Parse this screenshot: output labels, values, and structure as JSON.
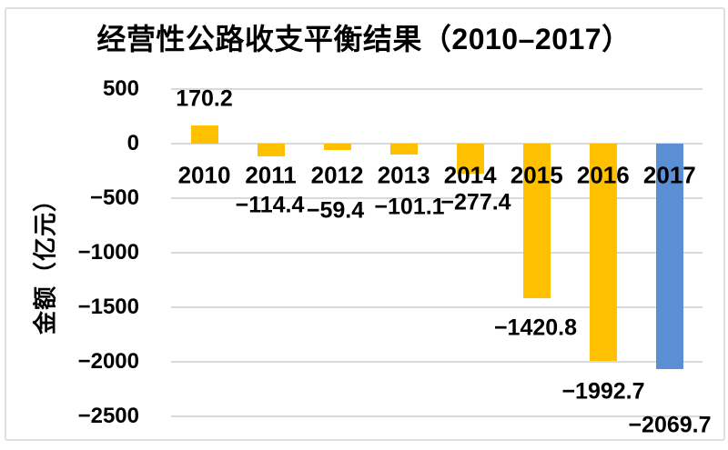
{
  "chart_data": {
    "type": "bar",
    "title": "经营性公路收支平衡结果（2010–2017）",
    "ylabel": "金额（亿元）",
    "xlabel": "",
    "categories": [
      "2010",
      "2011",
      "2012",
      "2013",
      "2014",
      "2015",
      "2016",
      "2017"
    ],
    "values": [
      170.2,
      -114.4,
      -59.4,
      -101.1,
      -277.4,
      -1420.8,
      -1992.7,
      -2069.7
    ],
    "value_labels": [
      "170.2",
      "−114.4",
      "−59.4",
      "−101.1",
      "−277.4",
      "−1420.8",
      "−1992.7",
      "−2069.7"
    ],
    "bar_colors": [
      "#FFC000",
      "#FFC000",
      "#FFC000",
      "#FFC000",
      "#FFC000",
      "#FFC000",
      "#FFC000",
      "#5B8FD3"
    ],
    "ylim": [
      -2500,
      500
    ],
    "y_tick_values": [
      500,
      0,
      -500,
      -1000,
      -1500,
      -2000,
      -2500
    ],
    "y_tick_labels": [
      "500",
      "0",
      "−500",
      "−1000",
      "−1500",
      "−2000",
      "−2500"
    ],
    "grid": true,
    "legend": false
  },
  "colors": {
    "bar_default": "#FFC000",
    "bar_highlight_2017": "#5B8FD3",
    "gridline": "#D9D9D9",
    "frame_border": "#E0E0E0",
    "text": "#000000",
    "background": "#FFFFFF"
  }
}
